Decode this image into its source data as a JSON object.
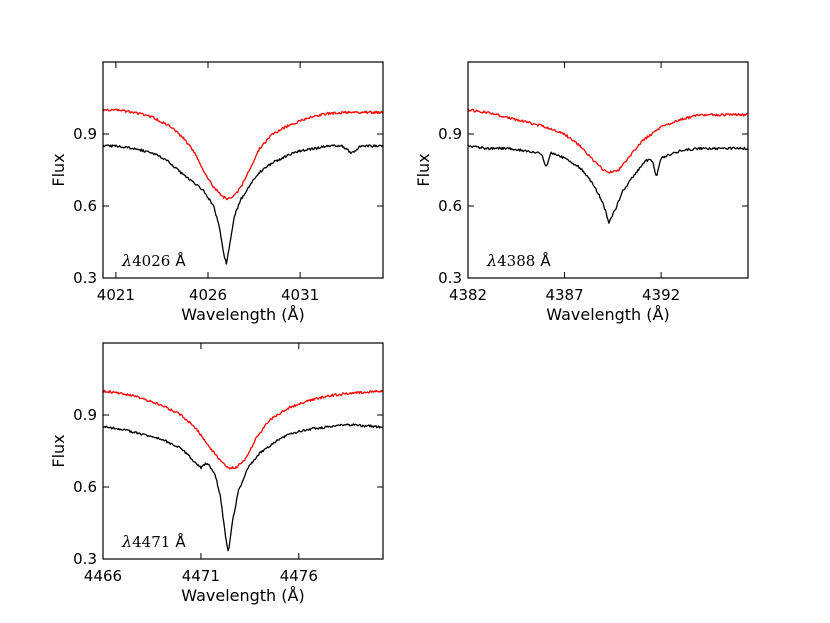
{
  "chart_data": [
    {
      "type": "line",
      "annotation": {
        "symbol": "λ",
        "number": "4026",
        "unit": "Å"
      },
      "xlabel": "Wavelength (Å)",
      "ylabel": "Flux",
      "xlim": [
        4020.3,
        4035.5
      ],
      "ylim": [
        0.3,
        1.2
      ],
      "xticks": [
        4021,
        4026,
        4031
      ],
      "xtick_labels": [
        "4021",
        "4026",
        "4031"
      ],
      "yticks": [
        0.3,
        0.6,
        0.9
      ],
      "ytick_labels": [
        "0.3",
        "0.6",
        "0.9"
      ],
      "series": [
        {
          "name": "red spectrum",
          "color": "#ff0000",
          "x": [
            4020.3,
            4021.0,
            4022.0,
            4023.0,
            4024.0,
            4024.7,
            4025.3,
            4025.8,
            4026.3,
            4026.7,
            4027.0,
            4027.4,
            4027.8,
            4028.3,
            4028.8,
            4029.5,
            4030.5,
            4031.5,
            4032.5,
            4033.5,
            4034.5,
            4035.5
          ],
          "values": [
            1.0,
            1.0,
            0.99,
            0.97,
            0.93,
            0.88,
            0.82,
            0.74,
            0.68,
            0.645,
            0.63,
            0.64,
            0.68,
            0.76,
            0.84,
            0.9,
            0.94,
            0.97,
            0.985,
            0.99,
            0.99,
            0.99
          ]
        },
        {
          "name": "black spectrum",
          "color": "#000000",
          "x": [
            4020.3,
            4021.0,
            4022.0,
            4023.0,
            4023.8,
            4024.5,
            4025.2,
            4025.8,
            4026.3,
            4026.6,
            4026.85,
            4027.0,
            4027.2,
            4027.45,
            4027.8,
            4028.3,
            4028.8,
            4029.5,
            4030.3,
            4031.0,
            4031.8,
            4032.5,
            4033.3,
            4033.8,
            4034.3,
            4035.5
          ],
          "values": [
            0.85,
            0.85,
            0.84,
            0.82,
            0.79,
            0.74,
            0.7,
            0.66,
            0.6,
            0.52,
            0.4,
            0.36,
            0.45,
            0.56,
            0.63,
            0.69,
            0.74,
            0.78,
            0.81,
            0.83,
            0.84,
            0.85,
            0.85,
            0.82,
            0.85,
            0.85
          ]
        }
      ]
    },
    {
      "type": "line",
      "annotation": {
        "symbol": "λ",
        "number": "4388",
        "unit": "Å"
      },
      "xlabel": "Wavelength (Å)",
      "ylabel": "Flux",
      "xlim": [
        4382.0,
        4396.5
      ],
      "ylim": [
        0.3,
        1.2
      ],
      "xticks": [
        4382,
        4387,
        4392
      ],
      "xtick_labels": [
        "4382",
        "4387",
        "4392"
      ],
      "yticks": [
        0.3,
        0.6,
        0.9
      ],
      "ytick_labels": [
        "0.3",
        "0.6",
        "0.9"
      ],
      "series": [
        {
          "name": "red spectrum",
          "color": "#ff0000",
          "x": [
            4382.0,
            4383.0,
            4384.0,
            4385.0,
            4386.0,
            4387.0,
            4387.8,
            4388.5,
            4389.0,
            4389.4,
            4389.8,
            4390.3,
            4391.0,
            4392.0,
            4393.0,
            4394.0,
            4395.0,
            4396.5
          ],
          "values": [
            1.0,
            0.99,
            0.97,
            0.95,
            0.93,
            0.9,
            0.85,
            0.79,
            0.75,
            0.74,
            0.75,
            0.8,
            0.87,
            0.93,
            0.96,
            0.98,
            0.98,
            0.98
          ]
        },
        {
          "name": "black spectrum",
          "color": "#000000",
          "x": [
            4382.0,
            4383.0,
            4384.0,
            4385.0,
            4385.8,
            4386.05,
            4386.3,
            4387.0,
            4387.8,
            4388.5,
            4389.0,
            4389.3,
            4389.6,
            4390.0,
            4390.6,
            4391.2,
            4391.55,
            4391.75,
            4392.0,
            4393.0,
            4394.0,
            4395.0,
            4396.5
          ],
          "values": [
            0.85,
            0.84,
            0.84,
            0.83,
            0.82,
            0.76,
            0.82,
            0.8,
            0.76,
            0.69,
            0.61,
            0.53,
            0.58,
            0.66,
            0.73,
            0.79,
            0.79,
            0.72,
            0.8,
            0.83,
            0.84,
            0.84,
            0.84
          ]
        }
      ]
    },
    {
      "type": "line",
      "annotation": {
        "symbol": "λ",
        "number": "4471",
        "unit": "Å"
      },
      "xlabel": "Wavelength (Å)",
      "ylabel": "Flux",
      "xlim": [
        4466.0,
        4480.3
      ],
      "ylim": [
        0.3,
        1.2
      ],
      "xticks": [
        4466,
        4471,
        4476
      ],
      "xtick_labels": [
        "4466",
        "4471",
        "4476"
      ],
      "yticks": [
        0.3,
        0.6,
        0.9
      ],
      "ytick_labels": [
        "0.3",
        "0.6",
        "0.9"
      ],
      "series": [
        {
          "name": "red spectrum",
          "color": "#ff0000",
          "x": [
            4466.0,
            4467.0,
            4468.0,
            4469.0,
            4470.0,
            4470.8,
            4471.5,
            4472.0,
            4472.4,
            4472.8,
            4473.3,
            4473.8,
            4474.5,
            4475.5,
            4476.5,
            4477.5,
            4478.5,
            4480.3
          ],
          "values": [
            1.0,
            0.99,
            0.97,
            0.94,
            0.9,
            0.84,
            0.76,
            0.71,
            0.68,
            0.68,
            0.72,
            0.8,
            0.88,
            0.93,
            0.96,
            0.98,
            0.99,
            1.0
          ]
        },
        {
          "name": "black spectrum",
          "color": "#000000",
          "x": [
            4466.0,
            4467.0,
            4468.0,
            4469.0,
            4470.0,
            4470.5,
            4471.0,
            4471.3,
            4471.7,
            4472.0,
            4472.25,
            4472.4,
            4472.6,
            4472.9,
            4473.4,
            4474.0,
            4474.8,
            4475.5,
            4476.5,
            4477.5,
            4478.5,
            4480.3
          ],
          "values": [
            0.85,
            0.84,
            0.82,
            0.8,
            0.76,
            0.72,
            0.68,
            0.7,
            0.66,
            0.56,
            0.4,
            0.33,
            0.45,
            0.58,
            0.68,
            0.74,
            0.79,
            0.82,
            0.84,
            0.85,
            0.86,
            0.85
          ]
        }
      ]
    }
  ]
}
